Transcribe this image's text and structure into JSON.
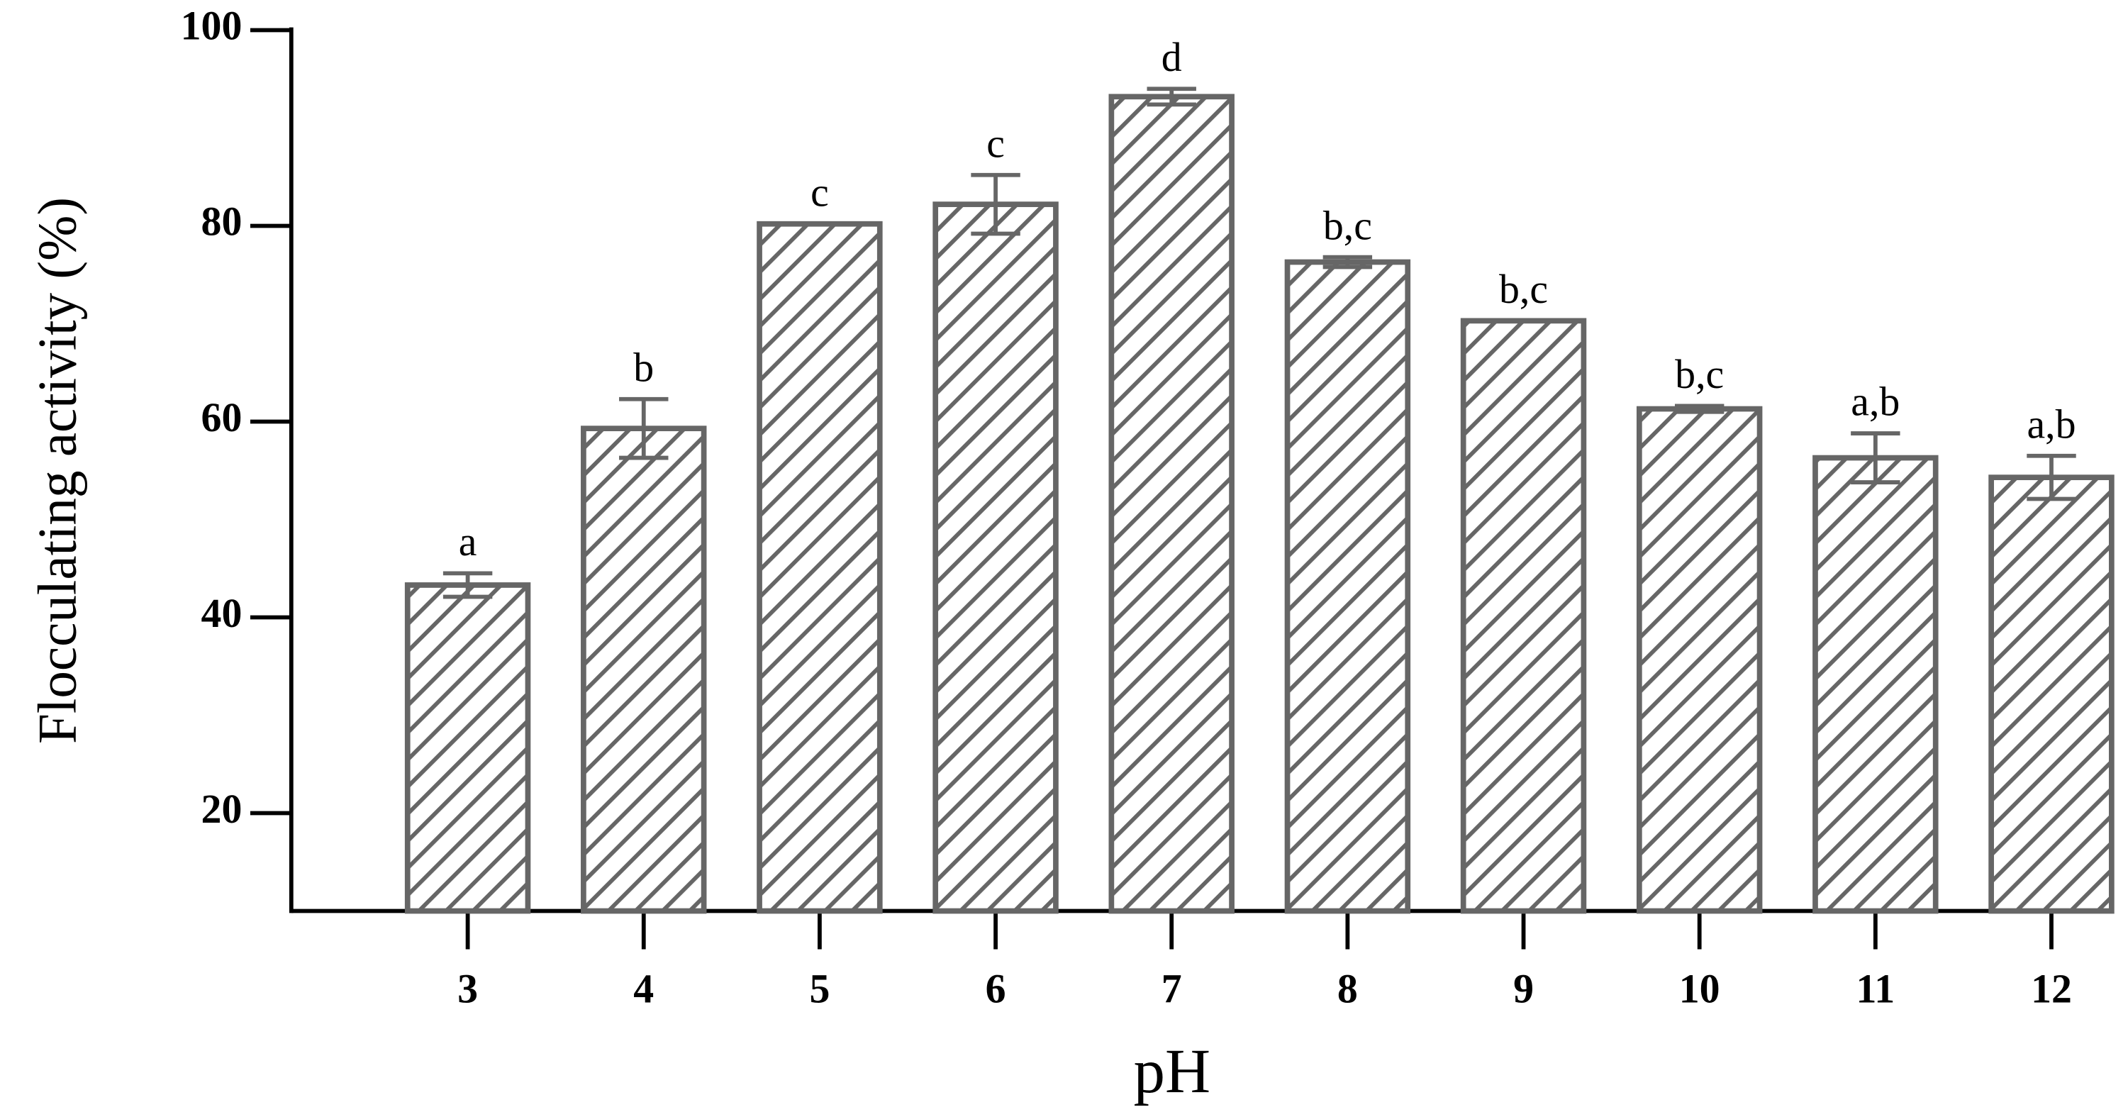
{
  "chart_data": {
    "type": "bar",
    "x_label": "pH",
    "y_label": "Flocculating activity (%)",
    "categories": [
      "3",
      "4",
      "5",
      "6",
      "7",
      "8",
      "9",
      "10",
      "11",
      "12"
    ],
    "values": [
      43.3,
      59.3,
      80.2,
      82.2,
      93.2,
      76.3,
      70.3,
      61.3,
      56.3,
      54.3
    ],
    "errors": [
      1.2,
      3,
      0,
      3,
      0.8,
      0.5,
      0,
      0.3,
      2.5,
      2.2
    ],
    "letters": [
      "a",
      "b",
      "c",
      "c",
      "d",
      "b,c",
      "b,c",
      "b,c",
      "a,b",
      "a,b"
    ],
    "color": "#666666",
    "fill_pattern": "hatch",
    "ylim": [
      10,
      100
    ],
    "yticks": [
      20,
      40,
      60,
      80,
      100
    ],
    "grid": false
  }
}
